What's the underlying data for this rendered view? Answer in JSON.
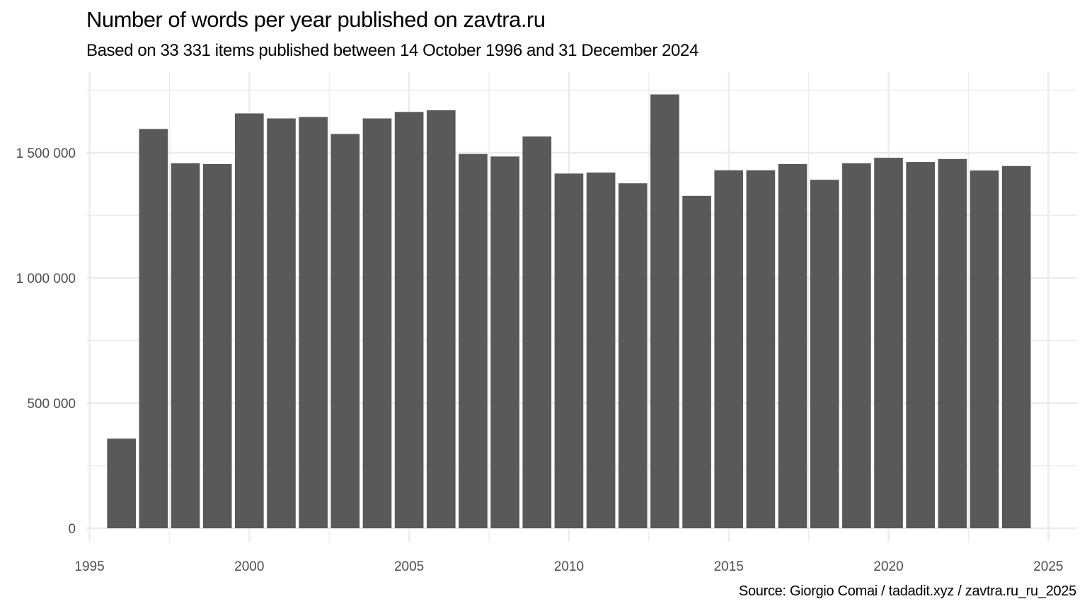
{
  "title": "Number of words per year published on zavtra.ru",
  "subtitle": "Based on 33 331 items published between 14 October 1996 and 31 December 2024",
  "caption": "Source: Giorgio Comai / tadadit.xyz / zavtra.ru_ru_2025",
  "chart_data": {
    "type": "bar",
    "title": "Number of words per year published on zavtra.ru",
    "subtitle": "Based on 33 331 items published between 14 October 1996 and 31 December 2024",
    "xlabel": "",
    "ylabel": "",
    "x": [
      1996,
      1997,
      1998,
      1999,
      2000,
      2001,
      2002,
      2003,
      2004,
      2005,
      2006,
      2007,
      2008,
      2009,
      2010,
      2011,
      2012,
      2013,
      2014,
      2015,
      2016,
      2017,
      2018,
      2019,
      2020,
      2021,
      2022,
      2023,
      2024
    ],
    "values": [
      358000,
      1595000,
      1458000,
      1455000,
      1657000,
      1637000,
      1643000,
      1575000,
      1637000,
      1663000,
      1670000,
      1495000,
      1485000,
      1565000,
      1417000,
      1421000,
      1378000,
      1733000,
      1328000,
      1430000,
      1430000,
      1455000,
      1392000,
      1458000,
      1480000,
      1463000,
      1475000,
      1429000,
      1447000
    ],
    "xlim": [
      1994.9,
      2025.9
    ],
    "ylim": [
      0,
      1750000
    ],
    "x_ticks": [
      1995,
      2000,
      2005,
      2010,
      2015,
      2020,
      2025
    ],
    "x_tick_labels": [
      "1995",
      "2000",
      "2005",
      "2010",
      "2015",
      "2020",
      "2025"
    ],
    "y_ticks": [
      0,
      500000,
      1000000,
      1500000
    ],
    "y_tick_labels": [
      "0",
      "500 000",
      "1 000 000",
      "1 500 000"
    ],
    "grid": true,
    "bar_color": "#595959",
    "grid_color": "#ebebeb"
  }
}
